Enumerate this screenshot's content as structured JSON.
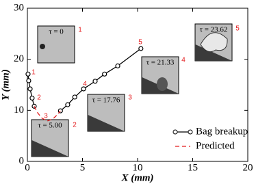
{
  "chart_data": {
    "type": "line",
    "xlabel": "X (mm)",
    "ylabel": "Y (mm)",
    "xlim": [
      0,
      20
    ],
    "xticks": [
      0,
      5,
      10,
      15,
      20
    ],
    "ylim": [
      0,
      30
    ],
    "yticks": [
      0,
      10,
      20,
      30
    ],
    "legend": "lower right",
    "series": [
      {
        "name": "Bag breakup",
        "color": "#000000",
        "marker": "circle",
        "dash": "solid",
        "x": [
          0.06,
          0.12,
          0.25,
          0.43,
          0.62,
          null,
          3.0,
          3.66,
          4.3,
          5.1,
          6.15,
          7.0,
          8.2,
          10.3
        ],
        "values": [
          17.1,
          15.8,
          14.2,
          12.4,
          10.8,
          null,
          9.9,
          11.1,
          12.6,
          14.2,
          15.7,
          17.1,
          18.7,
          22.1
        ]
      },
      {
        "name": "Predicted",
        "color": "#e41a1c",
        "marker": "none",
        "dash": "dashed",
        "x": [
          0.62,
          0.9,
          1.3,
          1.8,
          2.3,
          2.7,
          3.0
        ],
        "values": [
          10.8,
          9.6,
          8.5,
          7.9,
          8.3,
          9.1,
          9.9
        ]
      }
    ],
    "point_labels": [
      "1",
      "2",
      "3",
      "4",
      "5"
    ],
    "insets": [
      {
        "label": "τ = 0",
        "number": "1"
      },
      {
        "label": "τ = 5.00",
        "number": "2"
      },
      {
        "label": "τ = 17.76",
        "number": "3"
      },
      {
        "label": "τ = 21.33",
        "number": "4"
      },
      {
        "label": "τ = 23.62",
        "number": "5"
      }
    ]
  }
}
